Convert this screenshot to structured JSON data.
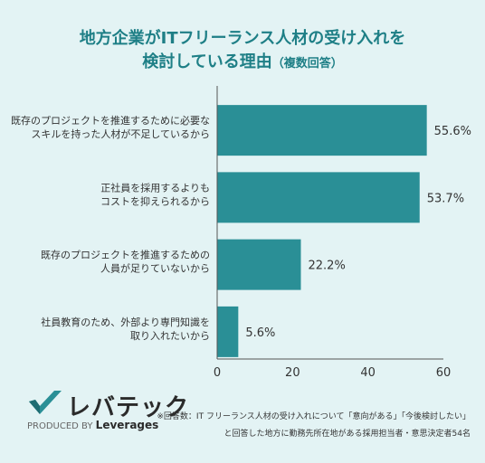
{
  "title_line1": "地方企業がITフリーランス人材の受け入れを",
  "title_line2": "検討している理由",
  "title_note": "（複数回答）",
  "chart_data": {
    "type": "bar",
    "orientation": "horizontal",
    "categories": [
      [
        "既存のプロジェクトを推進するために必要な",
        "スキルを持った人材が不足しているから"
      ],
      [
        "正社員を採用するよりも",
        "コストを抑えられるから"
      ],
      [
        "既存のプロジェクトを推進するための",
        "人員が足りていないから"
      ],
      [
        "社員教育のため、外部より専門知識を",
        "取り入れたいから"
      ]
    ],
    "values": [
      55.6,
      53.7,
      22.2,
      5.6
    ],
    "value_labels": [
      "55.6%",
      "53.7%",
      "22.2%",
      "5.6%"
    ],
    "xlim": [
      0,
      60
    ],
    "xticks": [
      "0",
      "20",
      "40",
      "60"
    ],
    "bar_color": "#2a8f96"
  },
  "logo": {
    "name": "レバテック",
    "produced_by": "PRODUCED BY",
    "company": "Leverages"
  },
  "footnote_line1": "※回答数：IT フリーランス人材の受け入れについて「意向がある」「今後検討したい」",
  "footnote_line2": "と回答した地方に勤務先所在地がある採用担当者・意思決定者54名"
}
